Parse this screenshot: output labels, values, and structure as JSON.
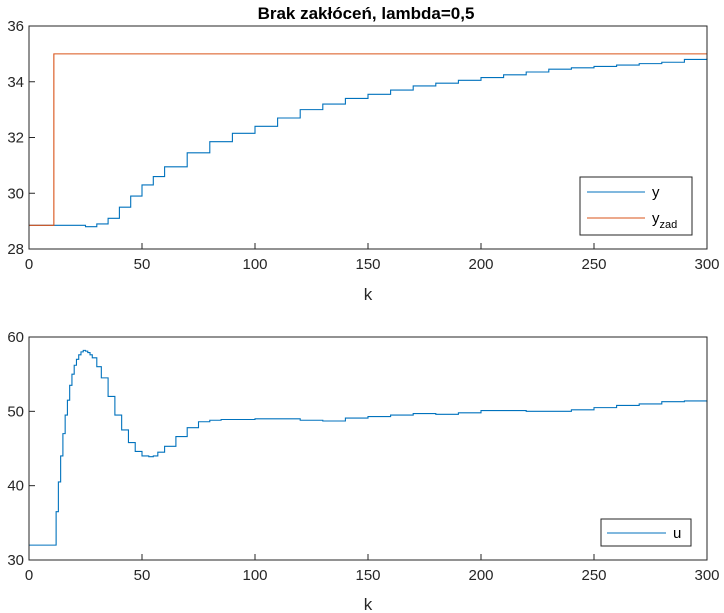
{
  "colors": {
    "series1": "#0072BD",
    "series2": "#D95319",
    "axis": "#262626",
    "background": "#ffffff"
  },
  "chart_data": [
    {
      "type": "line",
      "title": "Brak zakłóceń, lambda=0,5",
      "xlabel": "k",
      "ylabel": "",
      "xlim": [
        0,
        300
      ],
      "ylim": [
        28,
        36
      ],
      "xticks": [
        "0",
        "50",
        "100",
        "150",
        "200",
        "250",
        "300"
      ],
      "yticks": [
        "28",
        "30",
        "32",
        "34",
        "36"
      ],
      "grid": false,
      "step": true,
      "legend": {
        "position": "bottom-right",
        "entries": [
          {
            "main": "y",
            "sub": ""
          },
          {
            "main": "y",
            "sub": "zad"
          }
        ]
      },
      "series": [
        {
          "name": "y",
          "color": "#0072BD",
          "x": [
            0,
            10,
            20,
            25,
            30,
            35,
            40,
            45,
            50,
            55,
            60,
            70,
            80,
            90,
            100,
            110,
            120,
            130,
            140,
            150,
            160,
            170,
            180,
            190,
            200,
            210,
            220,
            230,
            240,
            250,
            260,
            270,
            280,
            290,
            300
          ],
          "y": [
            28.85,
            28.85,
            28.85,
            28.8,
            28.9,
            29.1,
            29.5,
            29.9,
            30.3,
            30.6,
            30.95,
            31.45,
            31.85,
            32.15,
            32.4,
            32.7,
            33.0,
            33.2,
            33.4,
            33.55,
            33.7,
            33.85,
            33.95,
            34.05,
            34.15,
            34.25,
            34.35,
            34.45,
            34.5,
            34.55,
            34.6,
            34.65,
            34.7,
            34.8,
            34.85
          ]
        },
        {
          "name": "y_zad",
          "color": "#D95319",
          "x": [
            0,
            11,
            11,
            300
          ],
          "y": [
            28.85,
            28.85,
            35.0,
            35.0
          ]
        }
      ]
    },
    {
      "type": "line",
      "title": "",
      "xlabel": "k",
      "ylabel": "",
      "xlim": [
        0,
        300
      ],
      "ylim": [
        30,
        60
      ],
      "xticks": [
        "0",
        "50",
        "100",
        "150",
        "200",
        "250",
        "300"
      ],
      "yticks": [
        "30",
        "40",
        "50",
        "60"
      ],
      "grid": false,
      "step": true,
      "legend": {
        "position": "bottom-right",
        "entries": [
          {
            "main": "u",
            "sub": ""
          }
        ]
      },
      "series": [
        {
          "name": "u",
          "color": "#0072BD",
          "x": [
            0,
            11,
            12,
            13,
            14,
            15,
            16,
            17,
            18,
            19,
            20,
            21,
            22,
            23,
            24,
            25,
            26,
            27,
            28,
            30,
            32,
            35,
            38,
            41,
            44,
            47,
            50,
            53,
            55,
            57,
            60,
            65,
            70,
            75,
            80,
            85,
            90,
            100,
            110,
            120,
            130,
            140,
            150,
            160,
            170,
            180,
            190,
            200,
            210,
            220,
            230,
            240,
            250,
            260,
            270,
            280,
            290,
            300
          ],
          "y": [
            32.0,
            32.0,
            36.5,
            40.5,
            44.0,
            47.0,
            49.5,
            51.5,
            53.5,
            55.0,
            56.2,
            57.0,
            57.6,
            58.0,
            58.2,
            58.1,
            57.9,
            57.6,
            57.2,
            56.0,
            54.5,
            52.0,
            49.5,
            47.5,
            45.8,
            44.6,
            44.0,
            43.9,
            44.0,
            44.5,
            45.3,
            46.6,
            47.8,
            48.6,
            48.8,
            48.9,
            48.9,
            49.0,
            49.0,
            48.8,
            48.7,
            49.1,
            49.3,
            49.5,
            49.7,
            49.6,
            49.8,
            50.1,
            50.1,
            50.0,
            50.0,
            50.2,
            50.5,
            50.8,
            51.0,
            51.3,
            51.4,
            51.2
          ]
        }
      ]
    }
  ]
}
